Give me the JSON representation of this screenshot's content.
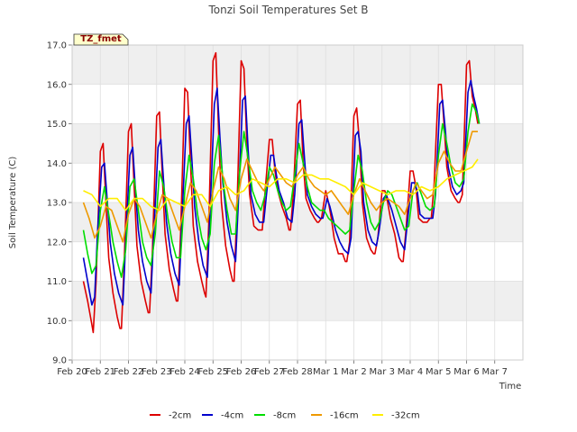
{
  "chart_data": {
    "type": "line",
    "title": "Tonzi Soil Temperatures Set B",
    "xlabel": "Time",
    "ylabel": "Soil Temperature (C)",
    "tag_label": "TZ_fmet",
    "ylim": [
      9.0,
      17.0
    ],
    "yticks": [
      "9.0",
      "10.0",
      "11.0",
      "12.0",
      "13.0",
      "14.0",
      "15.0",
      "16.0",
      "17.0"
    ],
    "xlim": [
      0,
      16
    ],
    "xticks": [
      "Feb 20",
      "Feb 21",
      "Feb 22",
      "Feb 23",
      "Feb 24",
      "Feb 25",
      "Feb 26",
      "Feb 27",
      "Feb 28",
      "Mar 1",
      "Mar 2",
      "Mar 3",
      "Mar 4",
      "Mar 5",
      "Mar 6",
      "Mar 7"
    ],
    "grid": true,
    "legend_position": "bottom",
    "series": [
      {
        "name": "-2cm",
        "color": "#dd0000",
        "x": [
          0.4,
          0.55,
          0.7,
          0.75,
          0.85,
          1.0,
          1.1,
          1.2,
          1.3,
          1.45,
          1.6,
          1.7,
          1.75,
          1.85,
          2.0,
          2.1,
          2.2,
          2.3,
          2.45,
          2.6,
          2.7,
          2.75,
          2.85,
          3.0,
          3.1,
          3.2,
          3.3,
          3.45,
          3.6,
          3.7,
          3.75,
          3.85,
          4.0,
          4.1,
          4.2,
          4.3,
          4.45,
          4.6,
          4.7,
          4.75,
          4.85,
          5.0,
          5.1,
          5.2,
          5.3,
          5.45,
          5.6,
          5.7,
          5.75,
          5.85,
          6.0,
          6.1,
          6.2,
          6.3,
          6.45,
          6.6,
          6.7,
          6.75,
          6.85,
          7.0,
          7.1,
          7.2,
          7.3,
          7.45,
          7.6,
          7.7,
          7.75,
          7.85,
          8.0,
          8.1,
          8.2,
          8.3,
          8.45,
          8.6,
          8.7,
          8.75,
          8.85,
          9.0,
          9.1,
          9.2,
          9.3,
          9.45,
          9.6,
          9.7,
          9.75,
          9.85,
          10.0,
          10.1,
          10.2,
          10.3,
          10.45,
          10.6,
          10.7,
          10.75,
          10.85,
          11.0,
          11.1,
          11.2,
          11.3,
          11.45,
          11.6,
          11.7,
          11.75,
          11.85,
          12.0,
          12.1,
          12.2,
          12.3,
          12.45,
          12.6,
          12.7,
          12.75,
          12.85,
          13.0,
          13.1,
          13.2,
          13.3,
          13.45,
          13.6,
          13.7,
          13.75,
          13.85,
          14.0,
          14.1,
          14.2,
          14.3,
          14.4
        ],
        "y": [
          11.0,
          10.5,
          9.9,
          9.7,
          11.0,
          14.3,
          14.5,
          13.0,
          11.6,
          10.7,
          10.1,
          9.8,
          9.8,
          11.5,
          14.8,
          15.0,
          13.4,
          11.9,
          11.0,
          10.5,
          10.2,
          10.2,
          11.8,
          15.2,
          15.3,
          13.7,
          12.2,
          11.3,
          10.8,
          10.5,
          10.5,
          12.2,
          15.9,
          15.8,
          14.0,
          12.4,
          11.5,
          11.0,
          10.7,
          10.6,
          12.5,
          16.6,
          16.8,
          14.8,
          13.0,
          11.9,
          11.3,
          11.0,
          11.0,
          12.8,
          16.6,
          16.4,
          14.5,
          13.2,
          12.4,
          12.3,
          12.3,
          12.3,
          13.3,
          14.6,
          14.6,
          13.8,
          13.3,
          12.9,
          12.6,
          12.3,
          12.3,
          13.2,
          15.5,
          15.6,
          14.0,
          13.1,
          12.8,
          12.6,
          12.5,
          12.5,
          12.6,
          13.3,
          13.0,
          12.6,
          12.1,
          11.7,
          11.7,
          11.5,
          11.5,
          12.0,
          15.2,
          15.4,
          14.5,
          13.0,
          12.1,
          11.8,
          11.7,
          11.7,
          12.1,
          13.3,
          13.3,
          13.0,
          12.6,
          12.2,
          11.6,
          11.5,
          11.5,
          12.3,
          13.8,
          13.8,
          13.4,
          12.6,
          12.5,
          12.5,
          12.6,
          12.6,
          13.5,
          16.0,
          16.0,
          15.0,
          13.9,
          13.3,
          13.1,
          13.0,
          13.0,
          13.2,
          16.5,
          16.6,
          15.7,
          15.4,
          15.0
        ]
      },
      {
        "name": "-4cm",
        "color": "#0000cc",
        "x": [
          0.4,
          0.55,
          0.7,
          0.8,
          0.9,
          1.05,
          1.15,
          1.25,
          1.35,
          1.5,
          1.65,
          1.8,
          1.9,
          2.05,
          2.15,
          2.25,
          2.35,
          2.5,
          2.65,
          2.8,
          2.9,
          3.05,
          3.15,
          3.25,
          3.35,
          3.5,
          3.65,
          3.8,
          3.9,
          4.05,
          4.15,
          4.25,
          4.35,
          4.5,
          4.65,
          4.8,
          4.9,
          5.05,
          5.15,
          5.25,
          5.35,
          5.5,
          5.65,
          5.8,
          5.9,
          6.05,
          6.15,
          6.25,
          6.35,
          6.5,
          6.65,
          6.8,
          6.9,
          7.05,
          7.15,
          7.25,
          7.35,
          7.5,
          7.65,
          7.8,
          7.9,
          8.05,
          8.15,
          8.25,
          8.35,
          8.5,
          8.65,
          8.8,
          8.9,
          9.05,
          9.15,
          9.25,
          9.35,
          9.5,
          9.65,
          9.8,
          9.9,
          10.05,
          10.15,
          10.25,
          10.35,
          10.5,
          10.65,
          10.8,
          10.9,
          11.05,
          11.15,
          11.25,
          11.35,
          11.5,
          11.65,
          11.8,
          11.9,
          12.05,
          12.15,
          12.25,
          12.35,
          12.5,
          12.65,
          12.8,
          12.9,
          13.05,
          13.15,
          13.25,
          13.35,
          13.5,
          13.65,
          13.8,
          13.9,
          14.05,
          14.15,
          14.25,
          14.35,
          14.45
        ],
        "y": [
          11.6,
          11.0,
          10.4,
          10.6,
          12.2,
          13.9,
          14.0,
          13.0,
          12.0,
          11.2,
          10.7,
          10.4,
          12.0,
          14.2,
          14.4,
          13.3,
          12.3,
          11.5,
          11.0,
          10.7,
          12.2,
          14.4,
          14.6,
          13.5,
          12.5,
          11.7,
          11.2,
          10.9,
          12.6,
          15.0,
          15.2,
          14.1,
          12.9,
          12.0,
          11.4,
          11.1,
          12.8,
          15.5,
          15.9,
          14.6,
          13.5,
          12.5,
          11.9,
          11.5,
          13.0,
          15.6,
          15.7,
          14.3,
          13.2,
          12.7,
          12.5,
          12.5,
          13.2,
          14.2,
          14.2,
          13.7,
          13.3,
          13.0,
          12.6,
          12.5,
          13.2,
          15.0,
          15.1,
          14.1,
          13.2,
          12.9,
          12.7,
          12.6,
          12.6,
          13.1,
          12.9,
          12.6,
          12.3,
          12.0,
          11.8,
          11.7,
          12.1,
          14.7,
          14.8,
          14.3,
          13.0,
          12.3,
          12.0,
          11.9,
          12.3,
          13.1,
          13.2,
          13.0,
          12.8,
          12.4,
          12.0,
          11.8,
          12.5,
          13.5,
          13.5,
          13.3,
          12.7,
          12.6,
          12.6,
          12.6,
          13.2,
          15.5,
          15.6,
          14.8,
          13.9,
          13.4,
          13.2,
          13.3,
          13.5,
          15.8,
          16.1,
          15.7,
          15.4,
          15.0
        ]
      },
      {
        "name": "-8cm",
        "color": "#00dd00",
        "x": [
          0.4,
          0.55,
          0.7,
          0.85,
          1.0,
          1.15,
          1.3,
          1.45,
          1.6,
          1.75,
          1.9,
          2.05,
          2.2,
          2.35,
          2.5,
          2.65,
          2.8,
          2.95,
          3.1,
          3.25,
          3.4,
          3.55,
          3.7,
          3.85,
          4.0,
          4.15,
          4.3,
          4.45,
          4.6,
          4.75,
          4.9,
          5.05,
          5.2,
          5.35,
          5.5,
          5.65,
          5.8,
          5.95,
          6.1,
          6.25,
          6.4,
          6.55,
          6.7,
          6.85,
          7.0,
          7.15,
          7.3,
          7.45,
          7.6,
          7.75,
          7.9,
          8.05,
          8.2,
          8.35,
          8.5,
          8.65,
          8.8,
          8.95,
          9.1,
          9.25,
          9.4,
          9.55,
          9.7,
          9.85,
          10.0,
          10.15,
          10.3,
          10.45,
          10.6,
          10.75,
          10.9,
          11.05,
          11.2,
          11.35,
          11.5,
          11.65,
          11.8,
          11.95,
          12.1,
          12.25,
          12.4,
          12.55,
          12.7,
          12.85,
          13.0,
          13.15,
          13.3,
          13.45,
          13.6,
          13.75,
          13.9,
          14.05,
          14.2,
          14.35,
          14.45
        ],
        "y": [
          12.3,
          11.7,
          11.2,
          11.4,
          12.8,
          13.4,
          12.7,
          12.0,
          11.5,
          11.1,
          11.8,
          13.4,
          13.6,
          12.8,
          12.0,
          11.6,
          11.4,
          12.2,
          13.8,
          13.4,
          12.6,
          12.0,
          11.6,
          11.6,
          13.3,
          14.2,
          13.6,
          12.7,
          12.1,
          11.8,
          12.2,
          14.0,
          14.7,
          13.6,
          12.8,
          12.2,
          12.2,
          13.8,
          14.8,
          14.1,
          13.3,
          13.0,
          12.8,
          13.2,
          13.9,
          13.7,
          13.3,
          13.0,
          12.8,
          12.9,
          13.7,
          14.5,
          14.0,
          13.4,
          13.0,
          12.9,
          12.8,
          12.8,
          12.6,
          12.5,
          12.4,
          12.3,
          12.2,
          12.3,
          13.3,
          14.2,
          13.8,
          13.0,
          12.5,
          12.3,
          12.5,
          13.0,
          13.3,
          13.2,
          12.9,
          12.6,
          12.3,
          12.4,
          13.3,
          13.5,
          13.2,
          12.9,
          12.8,
          12.9,
          14.2,
          15.0,
          14.5,
          13.9,
          13.5,
          13.4,
          13.6,
          14.8,
          15.5,
          15.3,
          15.0
        ]
      },
      {
        "name": "-16cm",
        "color": "#ee9900",
        "x": [
          0.4,
          0.6,
          0.8,
          1.0,
          1.2,
          1.4,
          1.6,
          1.8,
          2.0,
          2.2,
          2.4,
          2.6,
          2.8,
          3.0,
          3.2,
          3.4,
          3.6,
          3.8,
          4.0,
          4.2,
          4.4,
          4.6,
          4.8,
          5.0,
          5.2,
          5.4,
          5.6,
          5.8,
          6.0,
          6.2,
          6.4,
          6.6,
          6.8,
          7.0,
          7.2,
          7.4,
          7.6,
          7.8,
          8.0,
          8.2,
          8.4,
          8.6,
          8.8,
          9.0,
          9.2,
          9.4,
          9.6,
          9.8,
          10.0,
          10.2,
          10.4,
          10.6,
          10.8,
          11.0,
          11.2,
          11.4,
          11.6,
          11.8,
          12.0,
          12.2,
          12.4,
          12.6,
          12.8,
          13.0,
          13.2,
          13.4,
          13.6,
          13.8,
          14.0,
          14.2,
          14.4
        ],
        "y": [
          13.0,
          12.6,
          12.1,
          12.4,
          12.9,
          12.8,
          12.4,
          12.0,
          12.7,
          13.1,
          12.9,
          12.5,
          12.1,
          12.7,
          13.2,
          13.1,
          12.7,
          12.3,
          12.9,
          13.5,
          13.3,
          12.9,
          12.5,
          13.3,
          13.9,
          13.6,
          13.1,
          12.8,
          13.6,
          14.1,
          13.8,
          13.5,
          13.3,
          13.6,
          13.9,
          13.7,
          13.5,
          13.4,
          13.7,
          13.9,
          13.6,
          13.4,
          13.3,
          13.2,
          13.3,
          13.1,
          12.9,
          12.7,
          13.2,
          13.6,
          13.3,
          13.0,
          12.8,
          13.0,
          13.1,
          13.0,
          12.9,
          12.7,
          13.1,
          13.5,
          13.3,
          13.1,
          13.2,
          14.0,
          14.3,
          14.0,
          13.8,
          13.8,
          14.3,
          14.8,
          14.8
        ]
      },
      {
        "name": "-32cm",
        "color": "#ffee00",
        "x": [
          0.4,
          0.7,
          1.0,
          1.3,
          1.6,
          1.9,
          2.2,
          2.5,
          2.8,
          3.1,
          3.4,
          3.7,
          4.0,
          4.3,
          4.6,
          4.9,
          5.2,
          5.5,
          5.8,
          6.1,
          6.4,
          6.7,
          7.0,
          7.3,
          7.6,
          7.9,
          8.2,
          8.5,
          8.8,
          9.1,
          9.4,
          9.7,
          10.0,
          10.3,
          10.6,
          10.9,
          11.2,
          11.5,
          11.8,
          12.1,
          12.4,
          12.7,
          13.0,
          13.3,
          13.6,
          13.9,
          14.2,
          14.4
        ],
        "y": [
          13.3,
          13.2,
          12.9,
          13.1,
          13.1,
          12.8,
          13.1,
          13.1,
          12.9,
          12.8,
          13.1,
          13.0,
          12.9,
          13.2,
          13.2,
          12.9,
          13.3,
          13.4,
          13.2,
          13.3,
          13.6,
          13.5,
          13.4,
          13.6,
          13.6,
          13.5,
          13.7,
          13.7,
          13.6,
          13.6,
          13.5,
          13.4,
          13.2,
          13.5,
          13.4,
          13.3,
          13.2,
          13.3,
          13.3,
          13.2,
          13.4,
          13.3,
          13.4,
          13.6,
          13.7,
          13.8,
          13.9,
          14.1
        ]
      }
    ]
  }
}
